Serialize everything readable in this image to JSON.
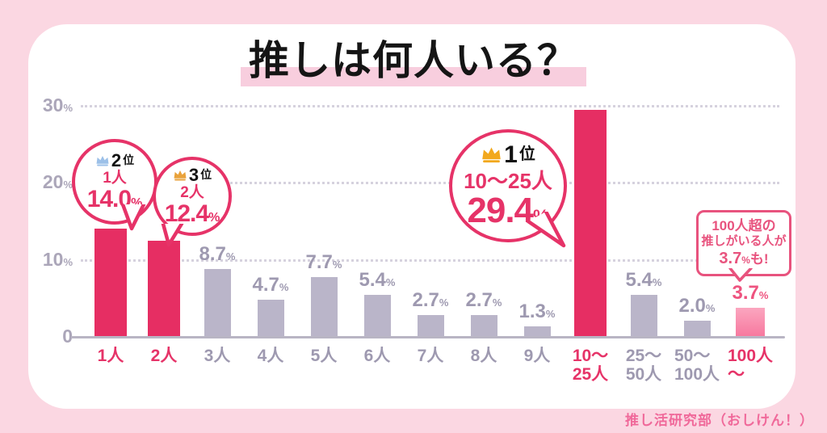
{
  "page": {
    "title": "推しは何人いる？",
    "credit": "推し活研究部（おしけん！）"
  },
  "colors": {
    "background": "#fbd7e2",
    "card": "#ffffff",
    "accent_pink": "#e63368",
    "bar_pink": "#e62e63",
    "bar_pink_light": "#f7799f",
    "bar_gray": "#bab5c9",
    "text_gray": "#9e99b0",
    "title_highlight": "#f8cede",
    "credit_pink": "#f0699a",
    "crown_gold": "#f2a81d",
    "crown_silver": "#9cc0e8",
    "crown_bronze": "#e9a23b"
  },
  "chart_data": {
    "type": "bar",
    "title": "推しは何人いる？",
    "xlabel": "",
    "ylabel": "%",
    "ylim": [
      0,
      30
    ],
    "grid": "horizontal-dotted",
    "categories": [
      "1人",
      "2人",
      "3人",
      "4人",
      "5人",
      "6人",
      "7人",
      "8人",
      "9人",
      "10〜25人",
      "25〜50人",
      "50〜100人",
      "100人〜"
    ],
    "values": [
      14.0,
      12.4,
      8.7,
      4.7,
      7.7,
      5.4,
      2.7,
      2.7,
      1.3,
      29.4,
      5.4,
      2.0,
      3.7
    ],
    "bar_styles": [
      "accent",
      "accent",
      "muted",
      "muted",
      "muted",
      "muted",
      "muted",
      "muted",
      "muted",
      "accent",
      "muted",
      "muted",
      "accent-light"
    ],
    "value_label_shown": [
      false,
      false,
      true,
      true,
      true,
      true,
      true,
      true,
      true,
      false,
      true,
      true,
      true
    ],
    "value_label_pink": [
      false,
      false,
      false,
      false,
      false,
      false,
      false,
      false,
      false,
      false,
      false,
      false,
      true
    ],
    "tick_lines": [
      [
        "1人"
      ],
      [
        "2人"
      ],
      [
        "3人"
      ],
      [
        "4人"
      ],
      [
        "5人"
      ],
      [
        "6人"
      ],
      [
        "7人"
      ],
      [
        "8人"
      ],
      [
        "9人"
      ],
      [
        "10〜",
        "25人"
      ],
      [
        "25〜",
        "50人"
      ],
      [
        "50〜",
        "100人"
      ],
      [
        "100人",
        "〜"
      ]
    ],
    "tick_pink": [
      true,
      true,
      false,
      false,
      false,
      false,
      false,
      false,
      false,
      true,
      false,
      false,
      true
    ],
    "yticks": [
      {
        "value": 30,
        "label": "30",
        "unit": "%"
      },
      {
        "value": 20,
        "label": "20",
        "unit": "%"
      },
      {
        "value": 10,
        "label": "10",
        "unit": "%"
      },
      {
        "value": 0,
        "label": "0",
        "unit": ""
      }
    ]
  },
  "annotations": {
    "rank1": {
      "rank_num": "1",
      "rank_suffix": "位",
      "label": "10〜25人",
      "value": "29.4",
      "unit": "%"
    },
    "rank2": {
      "rank_num": "2",
      "rank_suffix": "位",
      "label": "1人",
      "value": "14.0",
      "unit": "%"
    },
    "rank3": {
      "rank_num": "3",
      "rank_suffix": "位",
      "label": "2人",
      "value": "12.4",
      "unit": "%"
    },
    "callout": {
      "line1": "100人超の",
      "line2": "推しがいる人が",
      "value": "3.7",
      "unit": "%",
      "suffix": "も!"
    }
  }
}
